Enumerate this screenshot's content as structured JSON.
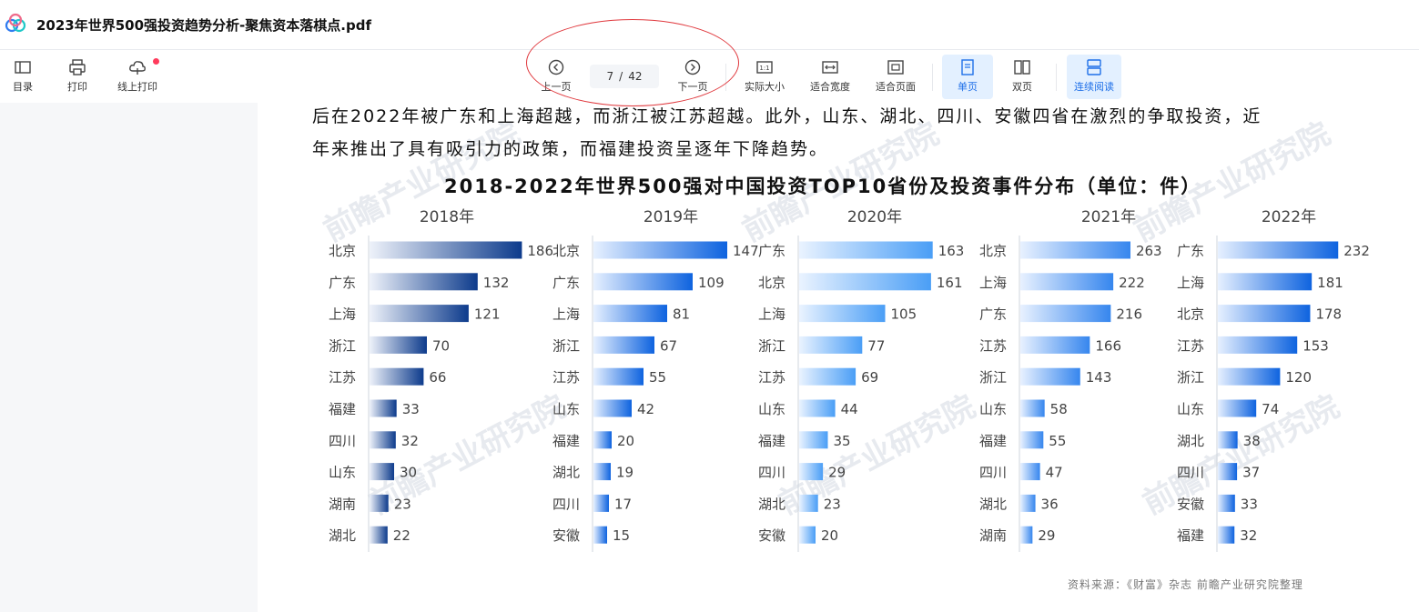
{
  "app": {
    "document_title": "2023年世界500强投资趋势分析-聚焦资本落棋点.pdf"
  },
  "toolbar": {
    "left": [
      {
        "label": "目录",
        "icon": "sidebar-toc-icon"
      },
      {
        "label": "打印",
        "icon": "printer-icon"
      },
      {
        "label": "线上打印",
        "icon": "cloud-print-icon",
        "badge_dot": true
      }
    ],
    "prev_label": "上一页",
    "next_label": "下一页",
    "current_page": "7",
    "page_sep": "/",
    "total_pages": "42",
    "view": [
      {
        "label": "实际大小",
        "icon": "actual-size-icon",
        "icon_text": "1:1"
      },
      {
        "label": "适合宽度",
        "icon": "fit-width-icon"
      },
      {
        "label": "适合页面",
        "icon": "fit-page-icon"
      },
      {
        "label": "单页",
        "icon": "single-page-icon",
        "active": true
      },
      {
        "label": "双页",
        "icon": "double-page-icon"
      },
      {
        "label": "连续阅读",
        "icon": "continuous-read-icon",
        "active": true
      }
    ]
  },
  "doc": {
    "lines": [
      "后在2022年被广东和上海超越，而浙江被江苏超越。此外，山东、湖北、四川、安徽四省在激烈的争取投资，近",
      "年来推出了具有吸引力的政策，而福建投资呈逐年下降趋势。"
    ],
    "source": "资料来源：《财富》杂志 前瞻产业研究院整理",
    "watermark": "前瞻产业研究院"
  },
  "colors": {
    "accent": "#1e6fe8",
    "active_bg": "#e3f0ff",
    "annotation": "#e0393e"
  },
  "chart_data": {
    "type": "bar",
    "title": "2018-2022年世界500强对中国投资TOP10省份及投资事件分布（单位：件）",
    "panels": [
      {
        "year": "2018年",
        "categories": [
          "北京",
          "广东",
          "上海",
          "浙江",
          "江苏",
          "福建",
          "四川",
          "山东",
          "湖南",
          "湖北"
        ],
        "values": [
          186,
          132,
          121,
          70,
          66,
          33,
          32,
          30,
          23,
          22
        ]
      },
      {
        "year": "2019年",
        "categories": [
          "北京",
          "广东",
          "上海",
          "浙江",
          "江苏",
          "山东",
          "福建",
          "湖北",
          "四川",
          "安徽"
        ],
        "values": [
          147,
          109,
          81,
          67,
          55,
          42,
          20,
          19,
          17,
          15
        ]
      },
      {
        "year": "2020年",
        "categories": [
          "广东",
          "北京",
          "上海",
          "浙江",
          "江苏",
          "山东",
          "福建",
          "四川",
          "湖北",
          "安徽"
        ],
        "values": [
          163,
          161,
          105,
          77,
          69,
          44,
          35,
          29,
          23,
          20
        ]
      },
      {
        "year": "2021年",
        "categories": [
          "北京",
          "上海",
          "广东",
          "江苏",
          "浙江",
          "山东",
          "福建",
          "四川",
          "湖北",
          "湖南"
        ],
        "values": [
          263,
          222,
          216,
          166,
          143,
          58,
          55,
          47,
          36,
          29
        ]
      },
      {
        "year": "2022年",
        "categories": [
          "广东",
          "上海",
          "北京",
          "江苏",
          "浙江",
          "山东",
          "湖北",
          "四川",
          "安徽",
          "福建"
        ],
        "values": [
          232,
          181,
          178,
          153,
          120,
          74,
          38,
          37,
          33,
          32
        ]
      }
    ]
  }
}
